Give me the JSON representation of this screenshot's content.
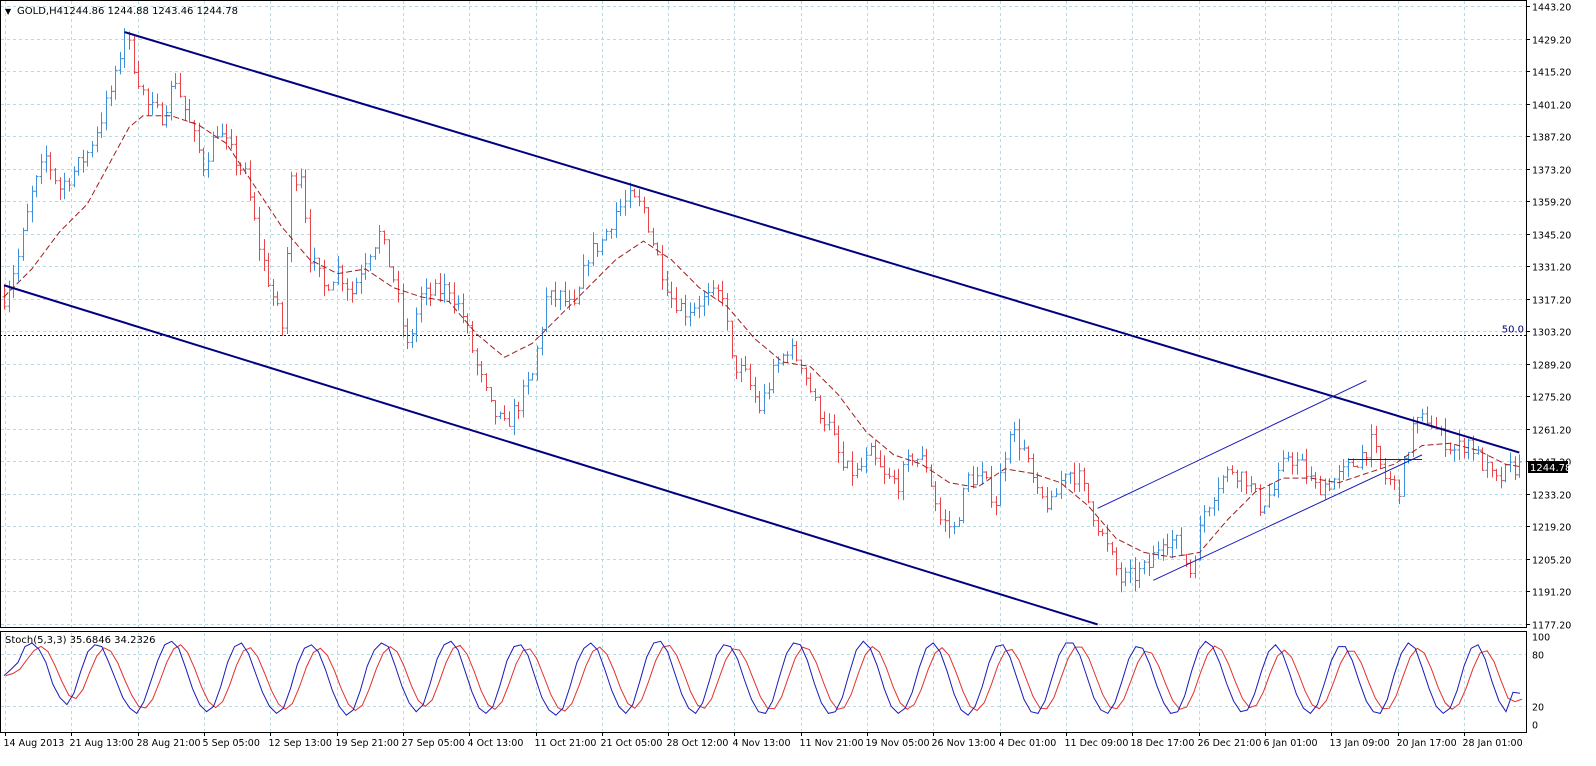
{
  "header": {
    "triangle": "▼",
    "symbol": "GOLD,H4",
    "ohlc": "1244.86 1244.88 1243.46 1244.78"
  },
  "current_price_label": "1244.78",
  "colors": {
    "background": "#ffffff",
    "grid": "#b4dbe6",
    "bull_candle": "#3c8fd8",
    "bear_candle": "#e8454a",
    "channel": "#000080",
    "ma": "#a01e1e",
    "stoch_main": "#1a1ab8",
    "stoch_signal": "#e23030",
    "axis_text": "#000000",
    "level_line": "#00007a"
  },
  "chart_data": [
    {
      "type": "candlestick",
      "title": "GOLD,H4",
      "ohlc_readout": {
        "open": 1244.86,
        "high": 1244.88,
        "low": 1243.46,
        "close": 1244.78
      },
      "y_ticks": [
        "1443.20",
        "1429.20",
        "1415.20",
        "1401.20",
        "1387.20",
        "1373.20",
        "1359.20",
        "1345.20",
        "1331.20",
        "1317.20",
        "1303.20",
        "1289.20",
        "1275.20",
        "1261.20",
        "1247.20",
        "1233.20",
        "1219.20",
        "1205.20",
        "1191.20",
        "1177.20"
      ],
      "ylim": [
        1177.2,
        1443.2
      ],
      "x_labels": [
        "14 Aug 2013",
        "21 Aug 13:00",
        "28 Aug 21:00",
        "5 Sep 05:00",
        "12 Sep 13:00",
        "19 Sep 21:00",
        "27 Sep 05:00",
        "4 Oct 13:00",
        "11 Oct 21:00",
        "21 Oct 05:00",
        "28 Oct 12:00",
        "4 Nov 13:00",
        "11 Nov 21:00",
        "19 Nov 05:00",
        "26 Nov 13:00",
        "4 Dec 01:00",
        "11 Dec 09:00",
        "18 Dec 17:00",
        "26 Dec 21:00",
        "6 Jan 01:00",
        "13 Jan 09:00",
        "20 Jan 17:00",
        "28 Jan 01:00"
      ],
      "close_path": [
        [
          0,
          1318
        ],
        [
          3,
          1335
        ],
        [
          6,
          1362
        ],
        [
          9,
          1378
        ],
        [
          12,
          1365
        ],
        [
          15,
          1372
        ],
        [
          18,
          1380
        ],
        [
          21,
          1395
        ],
        [
          24,
          1412
        ],
        [
          26,
          1433
        ],
        [
          28,
          1418
        ],
        [
          31,
          1400
        ],
        [
          34,
          1396
        ],
        [
          37,
          1412
        ],
        [
          40,
          1392
        ],
        [
          43,
          1375
        ],
        [
          46,
          1390
        ],
        [
          49,
          1380
        ],
        [
          52,
          1370
        ],
        [
          55,
          1340
        ],
        [
          58,
          1318
        ],
        [
          60,
          1305
        ],
        [
          62,
          1368
        ],
        [
          64,
          1372
        ],
        [
          66,
          1336
        ],
        [
          69,
          1322
        ],
        [
          72,
          1330
        ],
        [
          75,
          1320
        ],
        [
          78,
          1335
        ],
        [
          81,
          1345
        ],
        [
          84,
          1326
        ],
        [
          87,
          1296
        ],
        [
          90,
          1318
        ],
        [
          93,
          1320
        ],
        [
          96,
          1322
        ],
        [
          99,
          1310
        ],
        [
          102,
          1288
        ],
        [
          105,
          1270
        ],
        [
          108,
          1262
        ],
        [
          111,
          1272
        ],
        [
          114,
          1284
        ],
        [
          117,
          1317
        ],
        [
          120,
          1318
        ],
        [
          123,
          1312
        ],
        [
          126,
          1336
        ],
        [
          129,
          1342
        ],
        [
          132,
          1355
        ],
        [
          135,
          1360
        ],
        [
          138,
          1356
        ],
        [
          141,
          1335
        ],
        [
          144,
          1318
        ],
        [
          147,
          1312
        ],
        [
          150,
          1316
        ],
        [
          153,
          1318
        ],
        [
          155,
          1320
        ],
        [
          157,
          1290
        ],
        [
          160,
          1284
        ],
        [
          163,
          1270
        ],
        [
          166,
          1285
        ],
        [
          169,
          1296
        ],
        [
          172,
          1290
        ],
        [
          175,
          1272
        ],
        [
          178,
          1262
        ],
        [
          181,
          1244
        ],
        [
          184,
          1242
        ],
        [
          187,
          1250
        ],
        [
          190,
          1240
        ],
        [
          193,
          1238
        ],
        [
          196,
          1250
        ],
        [
          199,
          1246
        ],
        [
          202,
          1222
        ],
        [
          205,
          1218
        ],
        [
          208,
          1240
        ],
        [
          211,
          1240
        ],
        [
          214,
          1230
        ],
        [
          217,
          1262
        ],
        [
          220,
          1252
        ],
        [
          223,
          1232
        ],
        [
          226,
          1228
        ],
        [
          229,
          1244
        ],
        [
          232,
          1240
        ],
        [
          235,
          1225
        ],
        [
          238,
          1210
        ],
        [
          241,
          1196
        ],
        [
          244,
          1198
        ],
        [
          247,
          1202
        ],
        [
          250,
          1215
        ],
        [
          253,
          1212
        ],
        [
          256,
          1200
        ],
        [
          259,
          1226
        ],
        [
          262,
          1238
        ],
        [
          265,
          1244
        ],
        [
          268,
          1240
        ],
        [
          271,
          1228
        ],
        [
          274,
          1235
        ],
        [
          277,
          1250
        ],
        [
          280,
          1245
        ],
        [
          283,
          1236
        ],
        [
          286,
          1238
        ],
        [
          289,
          1242
        ],
        [
          292,
          1248
        ],
        [
          295,
          1255
        ],
        [
          298,
          1240
        ],
        [
          301,
          1236
        ],
        [
          304,
          1262
        ],
        [
          307,
          1266
        ],
        [
          310,
          1258
        ],
        [
          313,
          1252
        ],
        [
          316,
          1256
        ],
        [
          319,
          1246
        ],
        [
          322,
          1238
        ],
        [
          325,
          1244
        ],
        [
          327,
          1245
        ]
      ],
      "ma_path": [
        [
          0,
          1318
        ],
        [
          6,
          1330
        ],
        [
          12,
          1346
        ],
        [
          18,
          1358
        ],
        [
          24,
          1380
        ],
        [
          27,
          1391
        ],
        [
          30,
          1396
        ],
        [
          36,
          1396
        ],
        [
          42,
          1392
        ],
        [
          48,
          1384
        ],
        [
          54,
          1366
        ],
        [
          60,
          1348
        ],
        [
          66,
          1334
        ],
        [
          72,
          1328
        ],
        [
          78,
          1330
        ],
        [
          84,
          1322
        ],
        [
          90,
          1318
        ],
        [
          96,
          1316
        ],
        [
          102,
          1302
        ],
        [
          108,
          1292
        ],
        [
          114,
          1298
        ],
        [
          120,
          1310
        ],
        [
          126,
          1322
        ],
        [
          132,
          1334
        ],
        [
          138,
          1342
        ],
        [
          144,
          1334
        ],
        [
          150,
          1322
        ],
        [
          156,
          1314
        ],
        [
          162,
          1300
        ],
        [
          168,
          1290
        ],
        [
          174,
          1288
        ],
        [
          180,
          1276
        ],
        [
          186,
          1260
        ],
        [
          192,
          1250
        ],
        [
          198,
          1246
        ],
        [
          204,
          1238
        ],
        [
          210,
          1236
        ],
        [
          216,
          1244
        ],
        [
          222,
          1242
        ],
        [
          228,
          1238
        ],
        [
          234,
          1228
        ],
        [
          240,
          1214
        ],
        [
          246,
          1208
        ],
        [
          252,
          1206
        ],
        [
          258,
          1208
        ],
        [
          264,
          1222
        ],
        [
          270,
          1234
        ],
        [
          276,
          1240
        ],
        [
          282,
          1240
        ],
        [
          288,
          1238
        ],
        [
          294,
          1242
        ],
        [
          300,
          1246
        ],
        [
          306,
          1254
        ],
        [
          312,
          1255
        ],
        [
          318,
          1252
        ],
        [
          324,
          1246
        ],
        [
          327,
          1245
        ]
      ],
      "channel_upper": {
        "from": [
          26,
          1432
        ],
        "to": [
          327,
          1251
        ]
      },
      "channel_lower": {
        "from": [
          0,
          1323
        ],
        "to": [
          236,
          1177
        ]
      },
      "rising_channel_upper": {
        "from": [
          236,
          1227
        ],
        "to": [
          294,
          1282
        ]
      },
      "rising_channel_lower": {
        "from": [
          248,
          1196
        ],
        "to": [
          306,
          1250
        ]
      },
      "fib_level": {
        "label": "50.0",
        "value": 1301.5
      },
      "horizontal_marks": [
        {
          "from": 290,
          "to": 306,
          "value": 1248
        }
      ],
      "bar_count": 328
    },
    {
      "type": "line",
      "title": "Stoch(5,3,3) 35.6846 34.2326",
      "indicator": "Stoch(5,3,3)",
      "main_value": 35.6846,
      "signal_value": 34.2326,
      "y_ticks": [
        "100",
        "80",
        "20",
        "0"
      ],
      "ylim": [
        0,
        100
      ],
      "levels": [
        20,
        80
      ],
      "series": [
        {
          "values": [
            55,
            62,
            70,
            88,
            92,
            85,
            70,
            45,
            30,
            22,
            35,
            60,
            82,
            90,
            88,
            70,
            50,
            30,
            18,
            12,
            25,
            48,
            72,
            90,
            94,
            86,
            64,
            40,
            22,
            14,
            20,
            42,
            70,
            88,
            92,
            80,
            58,
            36,
            20,
            12,
            18,
            40,
            68,
            86,
            90,
            82,
            62,
            38,
            20,
            10,
            16,
            38,
            66,
            84,
            92,
            88,
            66,
            42,
            24,
            14,
            22,
            46,
            74,
            90,
            94,
            84,
            60,
            36,
            18,
            12,
            20,
            44,
            72,
            88,
            90,
            78,
            54,
            30,
            16,
            10,
            18,
            42,
            70,
            86,
            92,
            84,
            62,
            38,
            20,
            12,
            22,
            48,
            76,
            92,
            94,
            82,
            58,
            34,
            18,
            12,
            24,
            50,
            78,
            90,
            88,
            74,
            50,
            28,
            14,
            12,
            26,
            54,
            80,
            92,
            90,
            72,
            46,
            24,
            12,
            14,
            30,
            58,
            84,
            94,
            86,
            66,
            40,
            20,
            12,
            18,
            36,
            64,
            86,
            92,
            82,
            60,
            34,
            16,
            10,
            20,
            42,
            70,
            88,
            90,
            76,
            52,
            28,
            14,
            12,
            26,
            52,
            78,
            92,
            92,
            78,
            54,
            30,
            16,
            12,
            24,
            48,
            74,
            88,
            86,
            68,
            44,
            24,
            12,
            14,
            32,
            60,
            84,
            94,
            88,
            70,
            46,
            26,
            14,
            16,
            34,
            60,
            82,
            90,
            80,
            58,
            34,
            18,
            12,
            22,
            46,
            72,
            88,
            88,
            72,
            48,
            26,
            14,
            12,
            28,
            56,
            80,
            92,
            86,
            64,
            40,
            20,
            12,
            18,
            38,
            66,
            86,
            90,
            74,
            48,
            26,
            14,
            36,
            35
          ]
        }
      ]
    }
  ]
}
